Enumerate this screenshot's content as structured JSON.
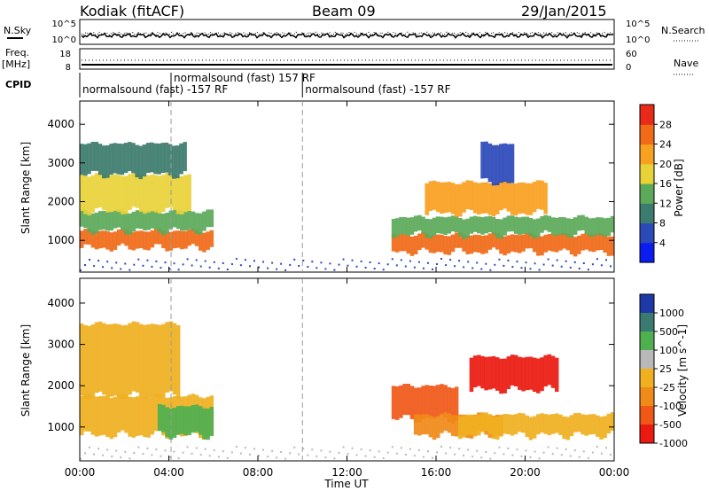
{
  "header": {
    "station": "Kodiak (fitACF)",
    "beam": "Beam 09",
    "date": "29/Jan/2015"
  },
  "top_panels": {
    "nsky_label": "N.Sky",
    "nsky_ticks": [
      "10^5",
      "10^0"
    ],
    "nsearch_label": "N.Search",
    "nsearch_ticks": [
      "10^5",
      "10^0"
    ],
    "freq_label": "Freq.",
    "freq_unit": "[MHz]",
    "freq_ticks": [
      "18",
      "8"
    ],
    "nave_label": "Nave",
    "nave_ticks": [
      "60",
      "0"
    ],
    "cpid_label": "CPID",
    "cpid_segments": [
      {
        "label": "normalsound (fast) -157 RF",
        "start_hr": 0.0,
        "end_hr": 4.1,
        "row": 1
      },
      {
        "label": "normalsound (fast) 157 RF",
        "start_hr": 4.1,
        "end_hr": 10.0,
        "row": 0
      },
      {
        "label": "normalsound (fast) -157 RF",
        "start_hr": 10.0,
        "end_hr": 24.0,
        "row": 1
      }
    ]
  },
  "axes": {
    "xlabel": "Time UT",
    "x_ticks": [
      "00:00",
      "04:00",
      "08:00",
      "12:00",
      "16:00",
      "20:00",
      "00:00"
    ],
    "ylabel": "Slant Range [km]",
    "y_ticks": [
      "1000",
      "2000",
      "3000",
      "4000"
    ]
  },
  "power_colorbar": {
    "label": "Power [dB]",
    "ticks": [
      "4",
      "8",
      "12",
      "16",
      "20",
      "24",
      "28"
    ],
    "colors": [
      "#0a1df0",
      "#2b49b8",
      "#3c7c6e",
      "#5ca95a",
      "#e8d238",
      "#f8a020",
      "#f06a18",
      "#e92a1a"
    ]
  },
  "velocity_colorbar": {
    "label": "Velocity [m s^-1]",
    "ticks": [
      "1000",
      "500",
      "100",
      "25",
      "-25",
      "-100",
      "-500",
      "-1000"
    ],
    "colors": [
      "#1d39a8",
      "#3a7a70",
      "#4fb050",
      "#b8b8b8",
      "#f0b020",
      "#f08a18",
      "#f05818",
      "#ea1a10"
    ]
  },
  "chart_data": [
    {
      "type": "heatmap",
      "panel": "power",
      "xlabel": "Time UT",
      "ylabel": "Slant Range [km]",
      "xlim_hr": [
        0,
        24
      ],
      "ylim_km": [
        180,
        4600
      ],
      "colorbar_label": "Power [dB]",
      "vlim": [
        0,
        30
      ],
      "regions": [
        {
          "t0": 0.0,
          "t1": 6.0,
          "r0": 800,
          "r1": 1250,
          "value": 26
        },
        {
          "t0": 0.0,
          "t1": 6.0,
          "r0": 1250,
          "r1": 1750,
          "value": 12
        },
        {
          "t0": 0.0,
          "t1": 5.0,
          "r0": 1750,
          "r1": 2700,
          "value": 16
        },
        {
          "t0": 0.0,
          "t1": 4.8,
          "r0": 2700,
          "r1": 3500,
          "value": 8
        },
        {
          "t0": 14.0,
          "t1": 24.0,
          "r0": 700,
          "r1": 1150,
          "value": 25
        },
        {
          "t0": 14.0,
          "t1": 24.0,
          "r0": 1150,
          "r1": 1600,
          "value": 12
        },
        {
          "t0": 15.5,
          "t1": 21.0,
          "r0": 1700,
          "r1": 2500,
          "value": 20
        },
        {
          "t0": 18.0,
          "t1": 19.5,
          "r0": 2500,
          "r1": 3500,
          "value": 6
        }
      ]
    },
    {
      "type": "heatmap",
      "panel": "velocity",
      "xlabel": "Time UT",
      "ylabel": "Slant Range [km]",
      "xlim_hr": [
        0,
        24
      ],
      "ylim_km": [
        180,
        4600
      ],
      "colorbar_label": "Velocity [m s^-1]",
      "vlim": [
        -1000,
        1000
      ],
      "regions": [
        {
          "t0": 0.0,
          "t1": 6.0,
          "r0": 800,
          "r1": 1750,
          "value": 0
        },
        {
          "t0": 3.5,
          "t1": 6.0,
          "r0": 800,
          "r1": 1500,
          "value": 150
        },
        {
          "t0": 0.0,
          "t1": 4.5,
          "r0": 1750,
          "r1": 3500,
          "value": 0
        },
        {
          "t0": 14.0,
          "t1": 17.0,
          "r0": 1200,
          "r1": 2000,
          "value": -200
        },
        {
          "t0": 15.0,
          "t1": 19.0,
          "r0": 800,
          "r1": 1300,
          "value": -100
        },
        {
          "t0": 17.0,
          "t1": 24.0,
          "r0": 800,
          "r1": 1300,
          "value": 0
        },
        {
          "t0": 17.5,
          "t1": 21.5,
          "r0": 1900,
          "r1": 2700,
          "value": -700
        }
      ]
    }
  ]
}
